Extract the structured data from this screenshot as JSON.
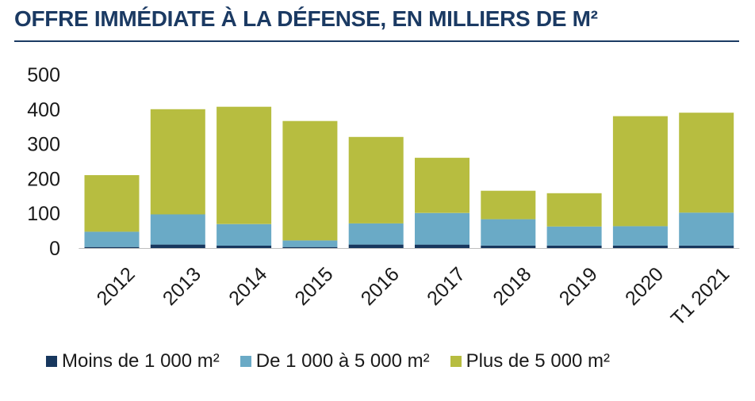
{
  "title": "OFFRE IMMÉDIATE À LA DÉFENSE, EN MILLIERS DE M²",
  "colors": {
    "title": "#1b3a63",
    "small": "#17375e",
    "medium": "#6aaac6",
    "large": "#b7bd40"
  },
  "chart_data": {
    "type": "bar",
    "stacked": true,
    "categories": [
      "2012",
      "2013",
      "2014",
      "2015",
      "2016",
      "2017",
      "2018",
      "2019",
      "2020",
      "T1 2021"
    ],
    "series": [
      {
        "name": "Moins de 1 000 m²",
        "values": [
          3,
          10,
          7,
          3,
          10,
          10,
          7,
          7,
          7,
          7
        ]
      },
      {
        "name": "De 1 000 à 5 000 m²",
        "values": [
          44,
          87,
          62,
          19,
          61,
          91,
          76,
          55,
          56,
          95
        ]
      },
      {
        "name": "Plus de 5 000 m²",
        "values": [
          163,
          303,
          338,
          344,
          249,
          159,
          82,
          96,
          317,
          288
        ]
      }
    ],
    "yticks": [
      "0",
      "100",
      "200",
      "300",
      "400",
      "500"
    ],
    "ylim": [
      0,
      500
    ],
    "grid": false,
    "legend_position": "bottom"
  }
}
